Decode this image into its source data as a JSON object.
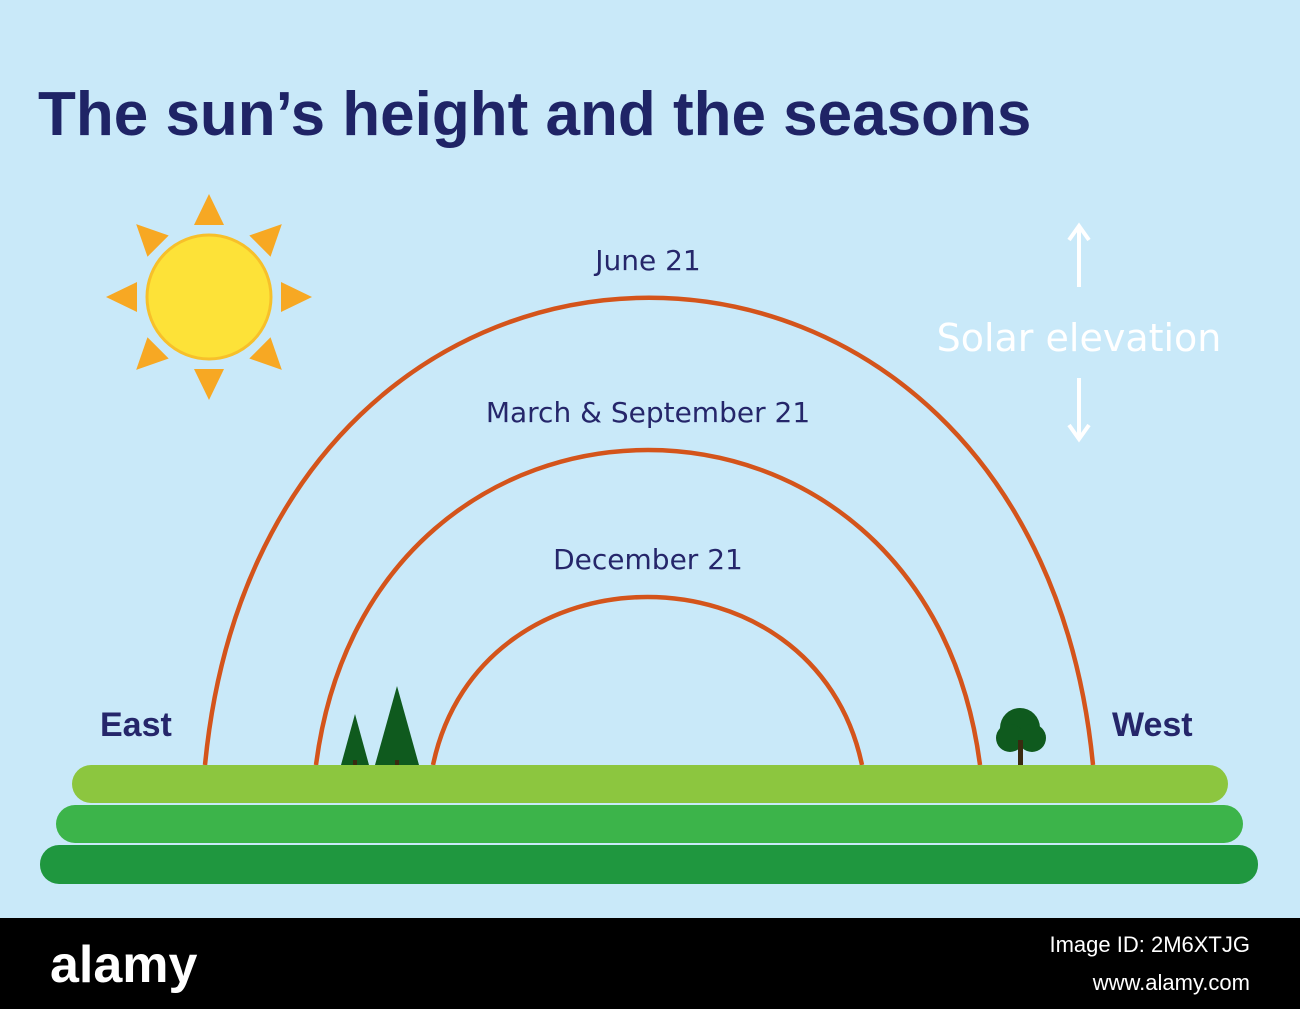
{
  "title": "The sun’s height and the seasons",
  "arcs": [
    {
      "label": "June 21"
    },
    {
      "label": "March & September 21"
    },
    {
      "label": "December 21"
    }
  ],
  "directions": {
    "east": "East",
    "west": "West"
  },
  "axis_label": "Solar elevation",
  "footer": {
    "brand": "alamy",
    "image_id": "Image ID: 2M6XTJG",
    "url": "www.alamy.com"
  }
}
